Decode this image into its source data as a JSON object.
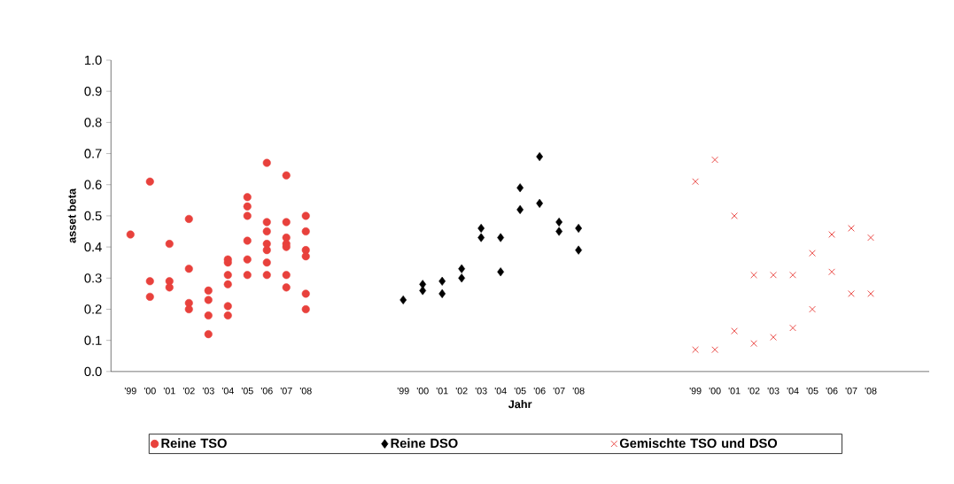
{
  "chart_data": {
    "type": "scatter",
    "xlabel": "Jahr",
    "ylabel": "asset beta",
    "categories": [
      "'99",
      "'00",
      "'01",
      "'02",
      "'03",
      "'04",
      "'05",
      "'06",
      "'07",
      "'08",
      null,
      null,
      null,
      null,
      "'99",
      "'00",
      "'01",
      "'02",
      "'03",
      "'04",
      "'05",
      "'06",
      "'07",
      "'08",
      null,
      null,
      null,
      null,
      null,
      "'99",
      "'00",
      "'01",
      "'02",
      "'03",
      "'04",
      "'05",
      "'06",
      "'07",
      "'08",
      null,
      null
    ],
    "ylim": [
      0,
      1
    ],
    "yticks": [
      {
        "value": 0,
        "label": "0.0"
      },
      {
        "value": 0.1,
        "label": "0.1"
      },
      {
        "value": 0.2,
        "label": "0.2"
      },
      {
        "value": 0.3,
        "label": "0.3"
      },
      {
        "value": 0.4,
        "label": "0.4"
      },
      {
        "value": 0.5,
        "label": "0.5"
      },
      {
        "value": 0.6,
        "label": "0.6"
      },
      {
        "value": 0.7,
        "label": "0.7"
      },
      {
        "value": 0.8,
        "label": "0.8"
      },
      {
        "value": 0.9,
        "label": "0.9"
      },
      {
        "value": 1,
        "label": "1.0"
      }
    ],
    "grid": false,
    "legend": "bottom",
    "series": [
      {
        "name": "Reine TSO",
        "color": "#e8413c",
        "marker": "circle",
        "values": [
          0.44,
          0.61,
          0.41,
          0.49,
          0.26,
          0.36,
          0.56,
          0.67,
          0.63,
          0.5,
          null,
          null,
          null,
          null,
          null,
          null,
          null,
          null,
          null,
          null,
          null,
          null,
          null,
          null,
          null,
          null,
          null,
          null,
          null,
          null,
          null,
          null,
          null,
          null,
          null,
          null,
          null,
          null,
          null,
          null,
          null
        ]
      },
      {
        "color": "#e8413c",
        "marker": "circle",
        "values": [
          null,
          0.29,
          0.29,
          0.33,
          0.23,
          0.35,
          0.53,
          0.48,
          0.48,
          0.45,
          null,
          null,
          null,
          null,
          null,
          null,
          null,
          null,
          null,
          null,
          null,
          null,
          null,
          null,
          null,
          null,
          null,
          null,
          null,
          null,
          null,
          null,
          null,
          null,
          null,
          null,
          null,
          null,
          null,
          null,
          null
        ]
      },
      {
        "color": "#e8413c",
        "marker": "circle",
        "values": [
          null,
          0.24,
          0.27,
          0.22,
          0.18,
          0.31,
          0.5,
          0.45,
          0.43,
          0.39,
          null,
          null,
          null,
          null,
          null,
          null,
          null,
          null,
          null,
          null,
          null,
          null,
          null,
          null,
          null,
          null,
          null,
          null,
          null,
          null,
          null,
          null,
          null,
          null,
          null,
          null,
          null,
          null,
          null,
          null,
          null
        ]
      },
      {
        "color": "#e8413c",
        "marker": "circle",
        "values": [
          null,
          null,
          null,
          0.2,
          0.12,
          0.28,
          0.42,
          0.41,
          0.41,
          0.37,
          null,
          null,
          null,
          null,
          null,
          null,
          null,
          null,
          null,
          null,
          null,
          null,
          null,
          null,
          null,
          null,
          null,
          null,
          null,
          null,
          null,
          null,
          null,
          null,
          null,
          null,
          null,
          null,
          null,
          null,
          null
        ]
      },
      {
        "color": "#e8413c",
        "marker": "circle",
        "values": [
          null,
          null,
          null,
          null,
          null,
          0.21,
          0.36,
          0.39,
          0.4,
          0.25,
          null,
          null,
          null,
          null,
          null,
          null,
          null,
          null,
          null,
          null,
          null,
          null,
          null,
          null,
          null,
          null,
          null,
          null,
          null,
          null,
          null,
          null,
          null,
          null,
          null,
          null,
          null,
          null,
          null,
          null,
          null
        ]
      },
      {
        "color": "#e8413c",
        "marker": "circle",
        "values": [
          null,
          null,
          null,
          null,
          null,
          0.18,
          0.31,
          0.35,
          0.31,
          0.2,
          null,
          null,
          null,
          null,
          null,
          null,
          null,
          null,
          null,
          null,
          null,
          null,
          null,
          null,
          null,
          null,
          null,
          null,
          null,
          null,
          null,
          null,
          null,
          null,
          null,
          null,
          null,
          null,
          null,
          null,
          null
        ]
      },
      {
        "color": "#e8413c",
        "marker": "circle",
        "values": [
          null,
          null,
          null,
          null,
          null,
          null,
          null,
          0.31,
          0.27,
          null,
          null,
          null,
          null,
          null,
          null,
          null,
          null,
          null,
          null,
          null,
          null,
          null,
          null,
          null,
          null,
          null,
          null,
          null,
          null,
          null,
          null,
          null,
          null,
          null,
          null,
          null,
          null,
          null,
          null,
          null,
          null
        ]
      },
      {
        "name": "Reine DSO",
        "color": "#000000",
        "marker": "diamond",
        "values": [
          null,
          null,
          null,
          null,
          null,
          null,
          null,
          null,
          null,
          null,
          null,
          null,
          null,
          null,
          0.23,
          0.28,
          0.29,
          0.33,
          0.46,
          0.43,
          0.59,
          0.69,
          0.48,
          0.46,
          null,
          null,
          null,
          null,
          null,
          null,
          null,
          null,
          null,
          null,
          null,
          null,
          null,
          null,
          null,
          null,
          null
        ]
      },
      {
        "color": "#000000",
        "marker": "diamond",
        "values": [
          null,
          null,
          null,
          null,
          null,
          null,
          null,
          null,
          null,
          null,
          null,
          null,
          null,
          null,
          null,
          0.26,
          0.25,
          0.3,
          0.43,
          0.32,
          0.52,
          0.54,
          0.45,
          0.39,
          null,
          null,
          null,
          null,
          null,
          null,
          null,
          null,
          null,
          null,
          null,
          null,
          null,
          null,
          null,
          null,
          null
        ]
      },
      {
        "name": "Gemischte TSO und DSO",
        "color": "#e8413c",
        "marker": "cross",
        "values": [
          null,
          null,
          null,
          null,
          null,
          null,
          null,
          null,
          null,
          null,
          null,
          null,
          null,
          null,
          null,
          null,
          null,
          null,
          null,
          null,
          null,
          null,
          null,
          null,
          null,
          null,
          null,
          null,
          null,
          0.61,
          0.68,
          0.5,
          0.31,
          0.31,
          0.31,
          0.38,
          0.44,
          0.46,
          0.43,
          null,
          null
        ]
      },
      {
        "color": "#e8413c",
        "marker": "cross",
        "values": [
          null,
          null,
          null,
          null,
          null,
          null,
          null,
          null,
          null,
          null,
          null,
          null,
          null,
          null,
          null,
          null,
          null,
          null,
          null,
          null,
          null,
          null,
          null,
          null,
          null,
          null,
          null,
          null,
          null,
          0.07,
          0.07,
          0.13,
          0.09,
          0.11,
          0.14,
          0.2,
          0.32,
          0.25,
          0.25,
          null,
          null
        ]
      }
    ]
  }
}
